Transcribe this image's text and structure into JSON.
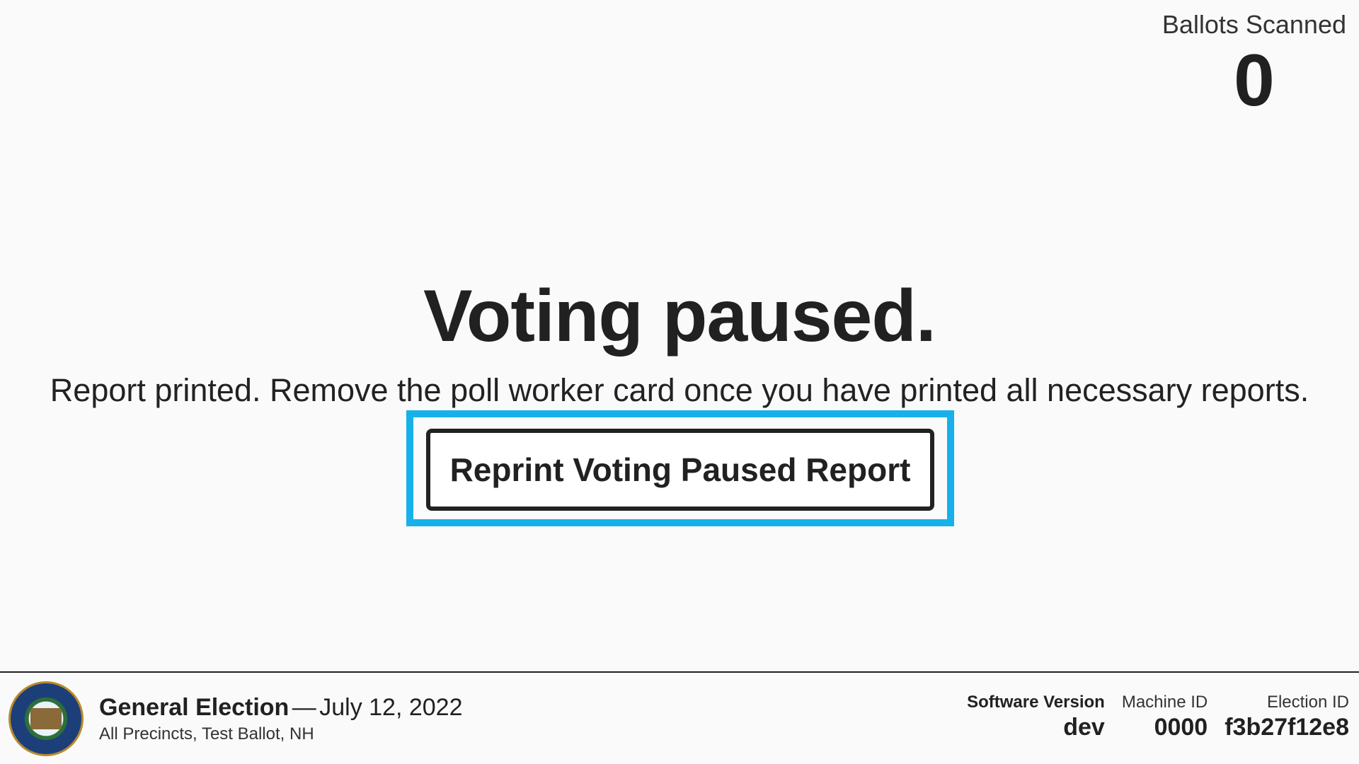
{
  "status": {
    "ballots_scanned_label": "Ballots Scanned",
    "ballots_scanned_count": "0"
  },
  "main": {
    "title": "Voting paused.",
    "message": "Report printed. Remove the poll worker card once you have printed all necessary reports.",
    "reprint_button_label": "Reprint Voting Paused Report"
  },
  "footer": {
    "election_title": "General Election",
    "election_date_separator": "—",
    "election_date": "July 12, 2022",
    "election_subtitle": "All Precincts, Test Ballot, NH",
    "software_version_label": "Software Version",
    "software_version_value": "dev",
    "machine_id_label": "Machine ID",
    "machine_id_value": "0000",
    "election_id_label": "Election ID",
    "election_id_value": "f3b27f12e8",
    "seal_icon": "state-seal-icon"
  },
  "colors": {
    "focus_outline": "#16b1ea",
    "text": "#212121",
    "background": "#fafafa"
  }
}
